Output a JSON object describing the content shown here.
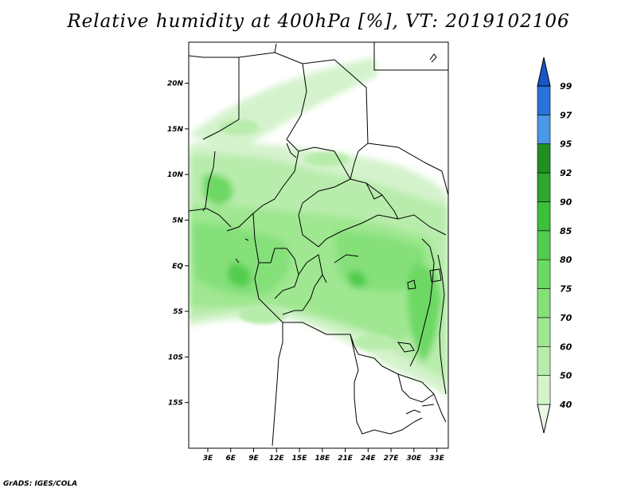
{
  "title": "Relative humidity at 400hPa [%], VT: 2019102106",
  "credit": "GrADS: IGES/COLA",
  "map": {
    "lat_labels": [
      "20N",
      "15N",
      "10N",
      "5N",
      "EQ",
      "5S",
      "10S",
      "15S"
    ],
    "lon_labels": [
      "3E",
      "6E",
      "9E",
      "12E",
      "15E",
      "18E",
      "21E",
      "24E",
      "27E",
      "30E",
      "33E"
    ],
    "lon_range": [
      0.5,
      34.5
    ],
    "lat_range": [
      -20,
      24.5
    ]
  },
  "legend": {
    "levels": [
      "40",
      "50",
      "60",
      "70",
      "75",
      "80",
      "85",
      "90",
      "92",
      "95",
      "97",
      "99"
    ],
    "colors": [
      "#eaf8e6",
      "#d4f3cc",
      "#b8ecac",
      "#9fe790",
      "#85e07a",
      "#6dd863",
      "#52cc4e",
      "#3ebf3c",
      "#2fa62e",
      "#1f8f22",
      "#4a98e6",
      "#2773d9",
      "#1756c7"
    ]
  }
}
